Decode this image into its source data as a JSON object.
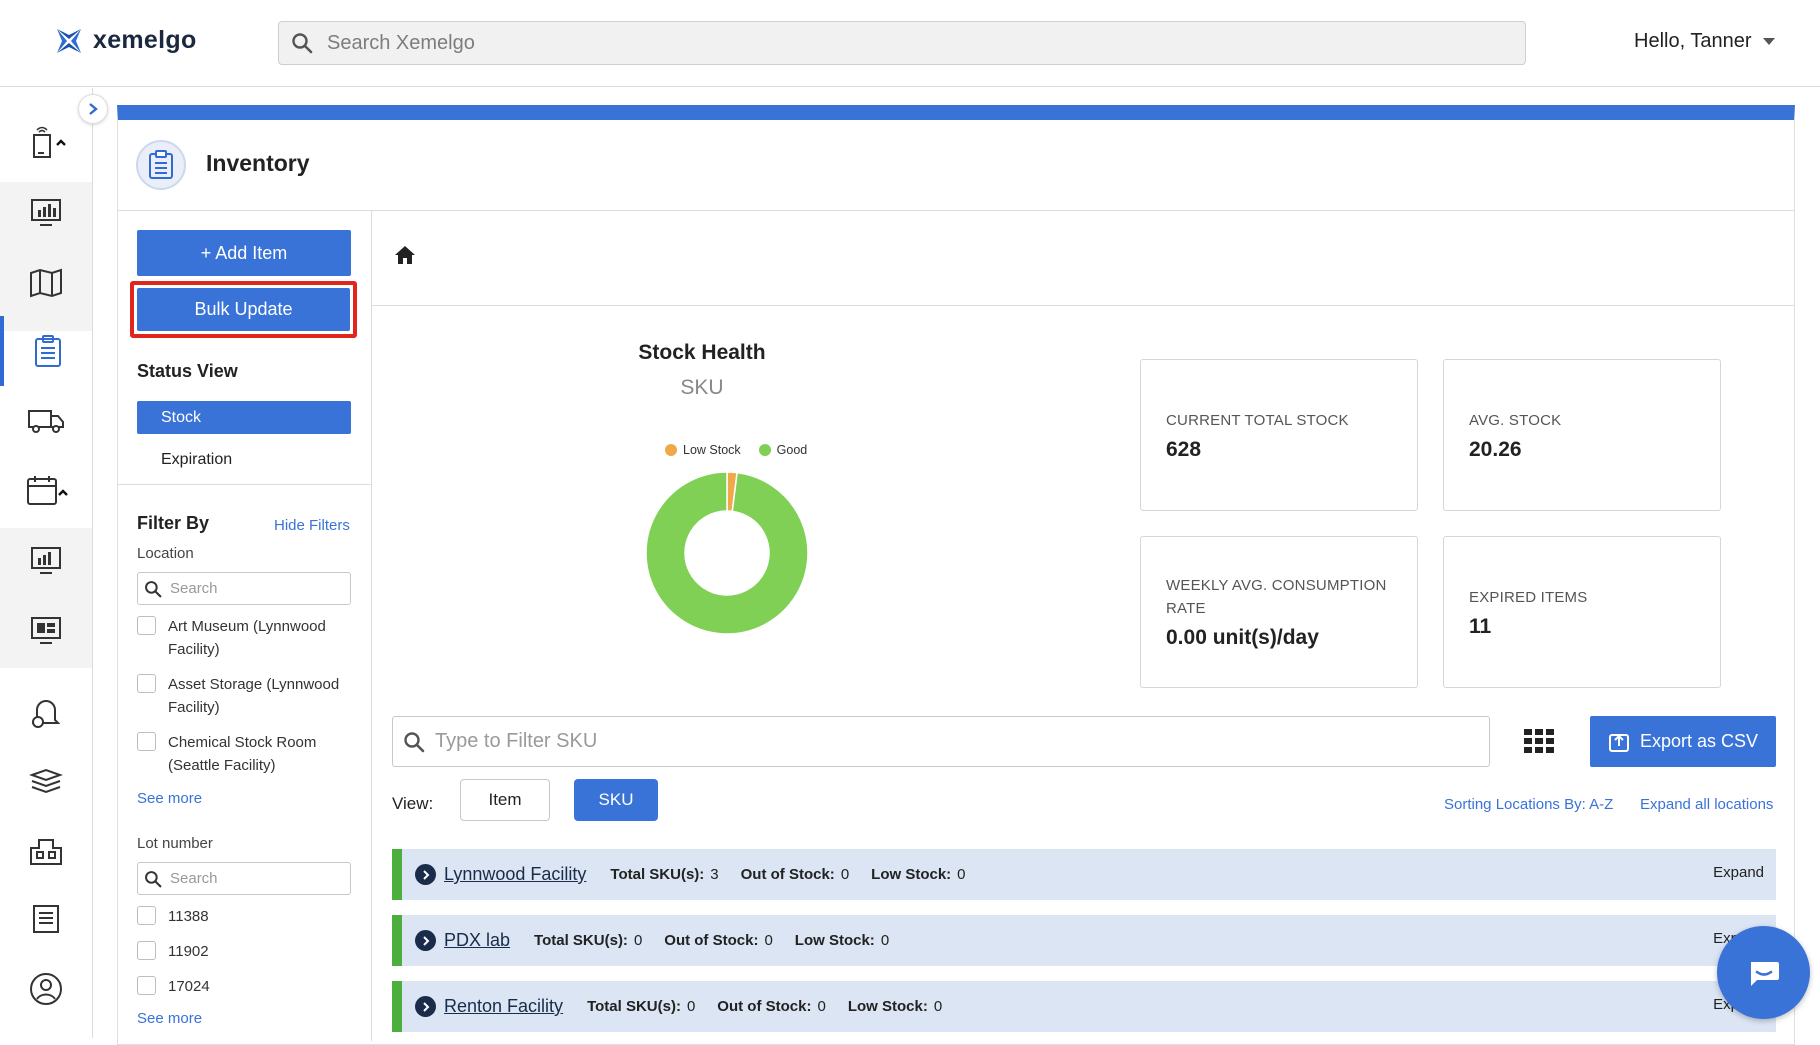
{
  "header": {
    "brand": "xemelgo",
    "search_placeholder": "Search Xemelgo",
    "greeting": "Hello, Tanner"
  },
  "page": {
    "title": "Inventory"
  },
  "actions": {
    "add_item": "+ Add Item",
    "bulk_update": "Bulk Update"
  },
  "status_view": {
    "title": "Status View",
    "options": [
      "Stock",
      "Expiration"
    ],
    "selected": "Stock"
  },
  "filters": {
    "title": "Filter By",
    "hide_label": "Hide Filters",
    "location": {
      "label": "Location",
      "search_placeholder": "Search",
      "options": [
        "Art Museum (Lynnwood Facility)",
        "Asset Storage (Lynnwood Facility)",
        "Chemical Stock Room (Seattle Facility)"
      ],
      "see_more": "See more"
    },
    "lot": {
      "label": "Lot number",
      "search_placeholder": "Search",
      "options": [
        "11388",
        "11902",
        "17024"
      ],
      "see_more": "See more"
    }
  },
  "chart_data": {
    "type": "pie",
    "title": "Stock Health",
    "subtitle": "SKU",
    "legend": [
      "Low Stock",
      "Good"
    ],
    "legend_position": "top",
    "values": [
      2,
      98
    ],
    "colors": [
      "#efa94a",
      "#80d056"
    ]
  },
  "stats": [
    {
      "label": "CURRENT TOTAL STOCK",
      "value": "628"
    },
    {
      "label": "AVG. STOCK",
      "value": "20.26"
    },
    {
      "label": "WEEKLY AVG. CONSUMPTION RATE",
      "value": "0.00 unit(s)/day"
    },
    {
      "label": "EXPIRED ITEMS",
      "value": "11"
    }
  ],
  "table_controls": {
    "filter_placeholder": "Type to Filter SKU",
    "export": "Export as CSV",
    "view_label": "View:",
    "view_options": [
      "Item",
      "SKU"
    ],
    "view_selected": "SKU",
    "sorting": "Sorting Locations By: A-Z",
    "expand_all": "Expand all locations"
  },
  "locations": [
    {
      "name": "Lynnwood Facility",
      "total_label": "Total SKU(s):",
      "total": "3",
      "out_label": "Out of Stock:",
      "out": "0",
      "low_label": "Low Stock:",
      "low": "0",
      "expand": "Expand"
    },
    {
      "name": "PDX lab",
      "total_label": "Total SKU(s):",
      "total": "0",
      "out_label": "Out of Stock:",
      "out": "0",
      "low_label": "Low Stock:",
      "low": "0",
      "expand": "Expand"
    },
    {
      "name": "Renton Facility",
      "total_label": "Total SKU(s):",
      "total": "0",
      "out_label": "Out of Stock:",
      "out": "0",
      "low_label": "Low Stock:",
      "low": "0",
      "expand": "Expand"
    }
  ]
}
